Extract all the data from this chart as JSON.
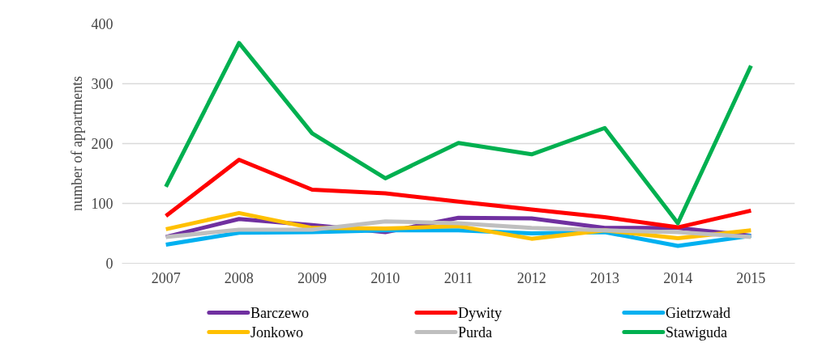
{
  "chart_data": {
    "type": "line",
    "ylabel": "number of appartments",
    "x": [
      2007,
      2008,
      2009,
      2010,
      2011,
      2012,
      2013,
      2014,
      2015
    ],
    "xlim": [
      2006.4,
      2015.6
    ],
    "xticks": [
      2007,
      2008,
      2009,
      2010,
      2011,
      2012,
      2013,
      2014,
      2015
    ],
    "ylim": [
      0,
      400
    ],
    "yticks": [
      0,
      100,
      200,
      300,
      400
    ],
    "grid": "y",
    "legend": "bottom",
    "series": [
      {
        "name": "Barczewo",
        "color": "#7030a0",
        "values": [
          44,
          74,
          64,
          52,
          76,
          75,
          59,
          59,
          46
        ]
      },
      {
        "name": "Dywity",
        "color": "#ff0000",
        "values": [
          79,
          173,
          123,
          117,
          103,
          90,
          77,
          60,
          88
        ]
      },
      {
        "name": "Gietrzwałd",
        "color": "#00b0f0",
        "values": [
          31,
          51,
          52,
          55,
          55,
          50,
          52,
          29,
          46
        ]
      },
      {
        "name": "Jonkowo",
        "color": "#ffc000",
        "values": [
          57,
          84,
          59,
          58,
          62,
          41,
          55,
          42,
          55
        ]
      },
      {
        "name": "Purda",
        "color": "#bfbfbf",
        "values": [
          44,
          56,
          56,
          70,
          67,
          59,
          55,
          52,
          44
        ]
      },
      {
        "name": "Stawiguda",
        "color": "#00b050",
        "values": [
          128,
          368,
          217,
          142,
          201,
          182,
          226,
          67,
          330
        ]
      }
    ]
  }
}
